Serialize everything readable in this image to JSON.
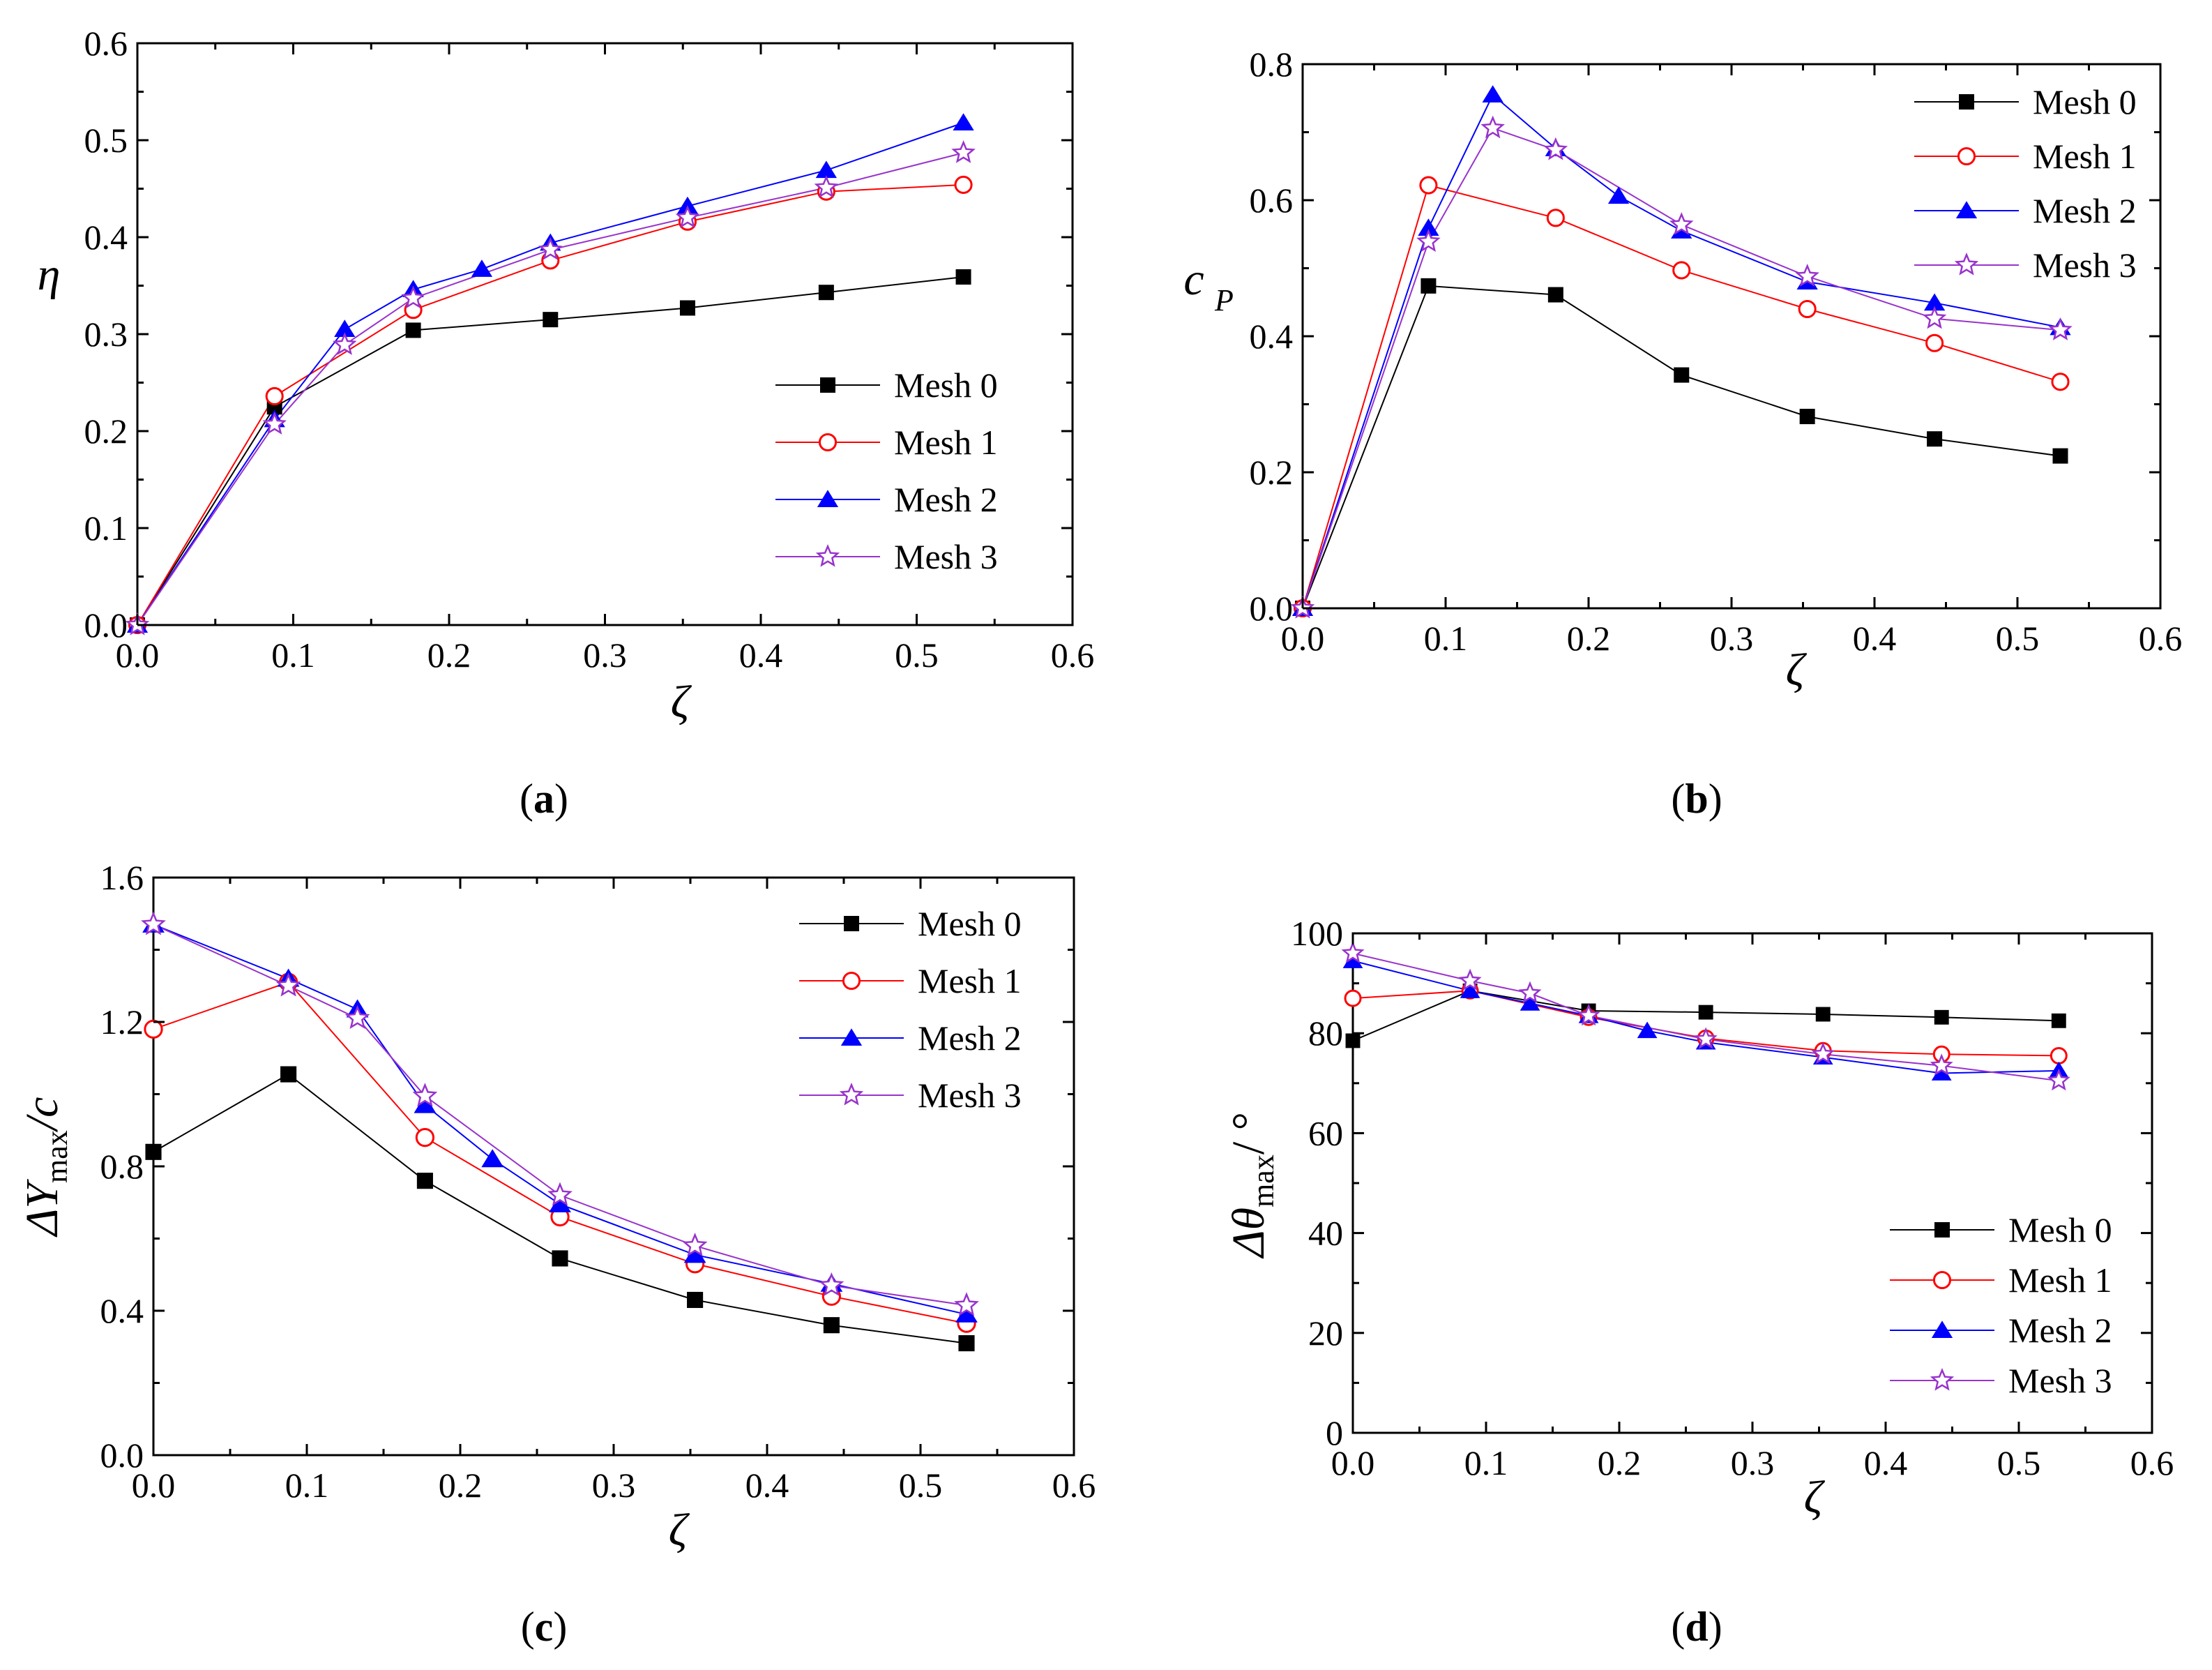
{
  "chart_data": [
    {
      "panel": "a",
      "caption_open": "(",
      "caption_letter": "a",
      "caption_close": ")",
      "type": "line",
      "xlabel": "ζ",
      "ylabel": "η",
      "xlim": [
        0,
        0.6
      ],
      "ylim": [
        0,
        0.6
      ],
      "xticks": [
        "0.0",
        "0.1",
        "0.2",
        "0.3",
        "0.4",
        "0.5",
        "0.6"
      ],
      "yticks": [
        "0.0",
        "0.1",
        "0.2",
        "0.3",
        "0.4",
        "0.5",
        "0.6"
      ],
      "legend_position": "center-right",
      "series": [
        {
          "name": "Mesh 0",
          "x": [
            0,
            0.088,
            0.177,
            0.265,
            0.353,
            0.442,
            0.53
          ],
          "y": [
            0,
            0.225,
            0.304,
            0.315,
            0.327,
            0.343,
            0.359
          ]
        },
        {
          "name": "Mesh 1",
          "x": [
            0,
            0.088,
            0.177,
            0.265,
            0.353,
            0.442,
            0.53
          ],
          "y": [
            0,
            0.236,
            0.325,
            0.376,
            0.416,
            0.447,
            0.454
          ]
        },
        {
          "name": "Mesh 2",
          "x": [
            0,
            0.088,
            0.133,
            0.177,
            0.221,
            0.265,
            0.353,
            0.442,
            0.53
          ],
          "y": [
            0,
            0.212,
            0.305,
            0.346,
            0.367,
            0.394,
            0.432,
            0.469,
            0.518
          ]
        },
        {
          "name": "Mesh 3",
          "x": [
            0,
            0.088,
            0.133,
            0.177,
            0.265,
            0.353,
            0.442,
            0.53
          ],
          "y": [
            0,
            0.207,
            0.289,
            0.337,
            0.387,
            0.42,
            0.451,
            0.487
          ]
        }
      ]
    },
    {
      "panel": "b",
      "caption_open": "(",
      "caption_letter": "b",
      "caption_close": ")",
      "type": "line",
      "xlabel": "ζ",
      "ylabel": "c",
      "ylabel_sub": "P",
      "xlim": [
        0,
        0.6
      ],
      "ylim": [
        0,
        0.8
      ],
      "xticks": [
        "0.0",
        "0.1",
        "0.2",
        "0.3",
        "0.4",
        "0.5",
        "0.6"
      ],
      "yticks": [
        "0.0",
        "0.2",
        "0.4",
        "0.6",
        "0.8"
      ],
      "legend_position": "top-right",
      "series": [
        {
          "name": "Mesh 0",
          "x": [
            0,
            0.088,
            0.177,
            0.265,
            0.353,
            0.442,
            0.53
          ],
          "y": [
            0,
            0.474,
            0.461,
            0.343,
            0.282,
            0.249,
            0.224
          ]
        },
        {
          "name": "Mesh 1",
          "x": [
            0,
            0.088,
            0.177,
            0.265,
            0.353,
            0.442,
            0.53
          ],
          "y": [
            0,
            0.622,
            0.574,
            0.497,
            0.44,
            0.39,
            0.333
          ]
        },
        {
          "name": "Mesh 2",
          "x": [
            0,
            0.088,
            0.133,
            0.177,
            0.221,
            0.265,
            0.353,
            0.442,
            0.53
          ],
          "y": [
            0,
            0.559,
            0.755,
            0.676,
            0.606,
            0.555,
            0.48,
            0.449,
            0.413
          ]
        },
        {
          "name": "Mesh 3",
          "x": [
            0,
            0.088,
            0.133,
            0.177,
            0.265,
            0.353,
            0.442,
            0.53
          ],
          "y": [
            0,
            0.539,
            0.706,
            0.674,
            0.564,
            0.488,
            0.426,
            0.409
          ]
        }
      ]
    },
    {
      "panel": "c",
      "caption_open": "(",
      "caption_letter": "c",
      "caption_close": ")",
      "type": "line",
      "xlabel": "ζ",
      "ylabel_delta": "ΔY",
      "ylabel_sub": "max",
      "ylabel_tail": "/c",
      "xlim": [
        0,
        0.6
      ],
      "ylim": [
        0,
        1.6
      ],
      "xticks": [
        "0.0",
        "0.1",
        "0.2",
        "0.3",
        "0.4",
        "0.5",
        "0.6"
      ],
      "yticks": [
        "0.0",
        "0.4",
        "0.8",
        "1.2",
        "1.6"
      ],
      "legend_position": "top-right",
      "series": [
        {
          "name": "Mesh 0",
          "x": [
            0,
            0.088,
            0.177,
            0.265,
            0.353,
            0.442,
            0.53
          ],
          "y": [
            0.84,
            1.055,
            0.76,
            0.545,
            0.43,
            0.36,
            0.31
          ]
        },
        {
          "name": "Mesh 1",
          "x": [
            0,
            0.088,
            0.177,
            0.265,
            0.353,
            0.442,
            0.53
          ],
          "y": [
            1.18,
            1.31,
            0.88,
            0.66,
            0.53,
            0.44,
            0.365
          ]
        },
        {
          "name": "Mesh 2",
          "x": [
            0,
            0.088,
            0.133,
            0.177,
            0.221,
            0.265,
            0.353,
            0.442,
            0.53
          ],
          "y": [
            1.47,
            1.32,
            1.235,
            0.97,
            0.82,
            0.695,
            0.555,
            0.475,
            0.39
          ]
        },
        {
          "name": "Mesh 3",
          "x": [
            0,
            0.088,
            0.133,
            0.177,
            0.265,
            0.353,
            0.442,
            0.53
          ],
          "y": [
            1.47,
            1.3,
            1.21,
            0.995,
            0.72,
            0.58,
            0.47,
            0.415
          ]
        }
      ]
    },
    {
      "panel": "d",
      "caption_open": "(",
      "caption_letter": "d",
      "caption_close": ")",
      "type": "line",
      "xlabel": "ζ",
      "ylabel_delta": "Δθ",
      "ylabel_sub": "max",
      "ylabel_tail": "/ °",
      "xlim": [
        0,
        0.6
      ],
      "ylim": [
        0,
        100
      ],
      "xticks": [
        "0.0",
        "0.1",
        "0.2",
        "0.3",
        "0.4",
        "0.5",
        "0.6"
      ],
      "yticks": [
        "0",
        "20",
        "40",
        "60",
        "80",
        "100"
      ],
      "legend_position": "bottom-right",
      "series": [
        {
          "name": "Mesh 0",
          "x": [
            0,
            0.088,
            0.177,
            0.265,
            0.353,
            0.442,
            0.53
          ],
          "y": [
            78.5,
            88.5,
            84.5,
            84.2,
            83.8,
            83.2,
            82.5
          ]
        },
        {
          "name": "Mesh 1",
          "x": [
            0,
            0.088,
            0.177,
            0.265,
            0.353,
            0.442,
            0.53
          ],
          "y": [
            87,
            88.5,
            83.2,
            79,
            76.5,
            75.8,
            75.5
          ]
        },
        {
          "name": "Mesh 2",
          "x": [
            0,
            0.088,
            0.133,
            0.177,
            0.221,
            0.265,
            0.353,
            0.442,
            0.53
          ],
          "y": [
            94.5,
            88.5,
            86,
            83.5,
            80.5,
            78.2,
            75.2,
            72,
            72.5
          ]
        },
        {
          "name": "Mesh 3",
          "x": [
            0,
            0.088,
            0.133,
            0.177,
            0.265,
            0.353,
            0.442,
            0.53
          ],
          "y": [
            96,
            90.5,
            88,
            83.5,
            78.8,
            75.8,
            73.5,
            70.5
          ]
        }
      ]
    }
  ],
  "style": {
    "colors": [
      "#000000",
      "#ff0000",
      "#0000ff",
      "#9933cc"
    ],
    "markers": [
      "filled-square-icon",
      "open-circle-icon",
      "filled-triangle-icon",
      "open-star-icon"
    ]
  }
}
